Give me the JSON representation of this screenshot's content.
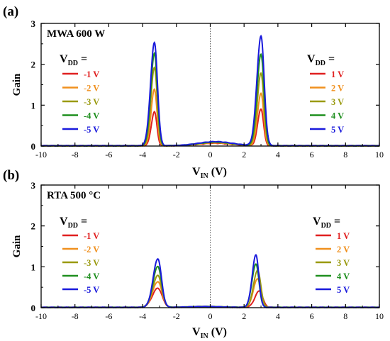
{
  "panel_a_label": "(a)",
  "panel_b_label": "(b)",
  "chart_data": [
    {
      "type": "line",
      "panel": "(a)",
      "annotation": "MWA 600 W",
      "xlabel_main": "V",
      "xlabel_sub": "IN",
      "xlabel_unit": " (V)",
      "ylabel": "Gain",
      "xlim": [
        -10,
        10
      ],
      "ylim": [
        0,
        3
      ],
      "xticks": [
        -10,
        -8,
        -6,
        -4,
        -2,
        0,
        2,
        4,
        6,
        8,
        10
      ],
      "yticks": [
        0,
        1,
        2,
        3
      ],
      "legend_left": {
        "title_main": "V",
        "title_sub": "DD",
        "title_suffix": " =",
        "entries": [
          "-1 V",
          "-2 V",
          "-3 V",
          "-4 V",
          "-5 V"
        ]
      },
      "legend_right": {
        "title_main": "V",
        "title_sub": "DD",
        "title_suffix": " =",
        "entries": [
          "1 V",
          "2 V",
          "3 V",
          "4 V",
          "5 V"
        ]
      },
      "series": [
        {
          "color": "#e02020",
          "vdd": 1,
          "left_peak": {
            "x": -3.3,
            "y": 0.83
          },
          "right_peak": {
            "x": 3.0,
            "y": 0.9
          }
        },
        {
          "color": "#f0901e",
          "vdd": 2,
          "left_peak": {
            "x": -3.3,
            "y": 1.38
          },
          "right_peak": {
            "x": 3.0,
            "y": 1.28
          }
        },
        {
          "color": "#9a9a10",
          "vdd": 3,
          "left_peak": {
            "x": -3.3,
            "y": 1.92
          },
          "right_peak": {
            "x": 3.0,
            "y": 1.77
          }
        },
        {
          "color": "#1f8f1f",
          "vdd": 4,
          "left_peak": {
            "x": -3.3,
            "y": 2.26
          },
          "right_peak": {
            "x": 3.0,
            "y": 2.24
          }
        },
        {
          "color": "#1a1adc",
          "vdd": 5,
          "left_peak": {
            "x": -3.3,
            "y": 2.52
          },
          "right_peak": {
            "x": 3.0,
            "y": 2.68
          }
        }
      ],
      "dotted_line_x": 0
    },
    {
      "type": "line",
      "panel": "(b)",
      "annotation": "RTA 500 °C",
      "xlabel_main": "V",
      "xlabel_sub": "IN",
      "xlabel_unit": " (V)",
      "ylabel": "Gain",
      "xlim": [
        -10,
        10
      ],
      "ylim": [
        0,
        3
      ],
      "xticks": [
        -10,
        -8,
        -6,
        -4,
        -2,
        0,
        2,
        4,
        6,
        8,
        10
      ],
      "yticks": [
        0,
        1,
        2,
        3
      ],
      "legend_left": {
        "title_main": "V",
        "title_sub": "DD",
        "title_suffix": " =",
        "entries": [
          "-1 V",
          "-2 V",
          "-3 V",
          "-4 V",
          "-5 V"
        ]
      },
      "legend_right": {
        "title_main": "V",
        "title_sub": "DD",
        "title_suffix": " =",
        "entries": [
          "1 V",
          "2 V",
          "3 V",
          "4 V",
          "5 V"
        ]
      },
      "series": [
        {
          "color": "#e02020",
          "vdd": 1,
          "left_peak": {
            "x": -3.1,
            "y": 0.47
          },
          "right_peak": {
            "x": 2.9,
            "y": 0.4
          }
        },
        {
          "color": "#f0901e",
          "vdd": 2,
          "left_peak": {
            "x": -3.1,
            "y": 0.63
          },
          "right_peak": {
            "x": 2.8,
            "y": 0.7
          }
        },
        {
          "color": "#9a9a10",
          "vdd": 3,
          "left_peak": {
            "x": -3.1,
            "y": 0.78
          },
          "right_peak": {
            "x": 2.8,
            "y": 0.91
          }
        },
        {
          "color": "#1f8f1f",
          "vdd": 4,
          "left_peak": {
            "x": -3.1,
            "y": 1.0
          },
          "right_peak": {
            "x": 2.7,
            "y": 1.06
          }
        },
        {
          "color": "#1a1adc",
          "vdd": 5,
          "left_peak": {
            "x": -3.1,
            "y": 1.19
          },
          "right_peak": {
            "x": 2.7,
            "y": 1.28
          }
        }
      ],
      "dotted_line_x": 0
    }
  ]
}
